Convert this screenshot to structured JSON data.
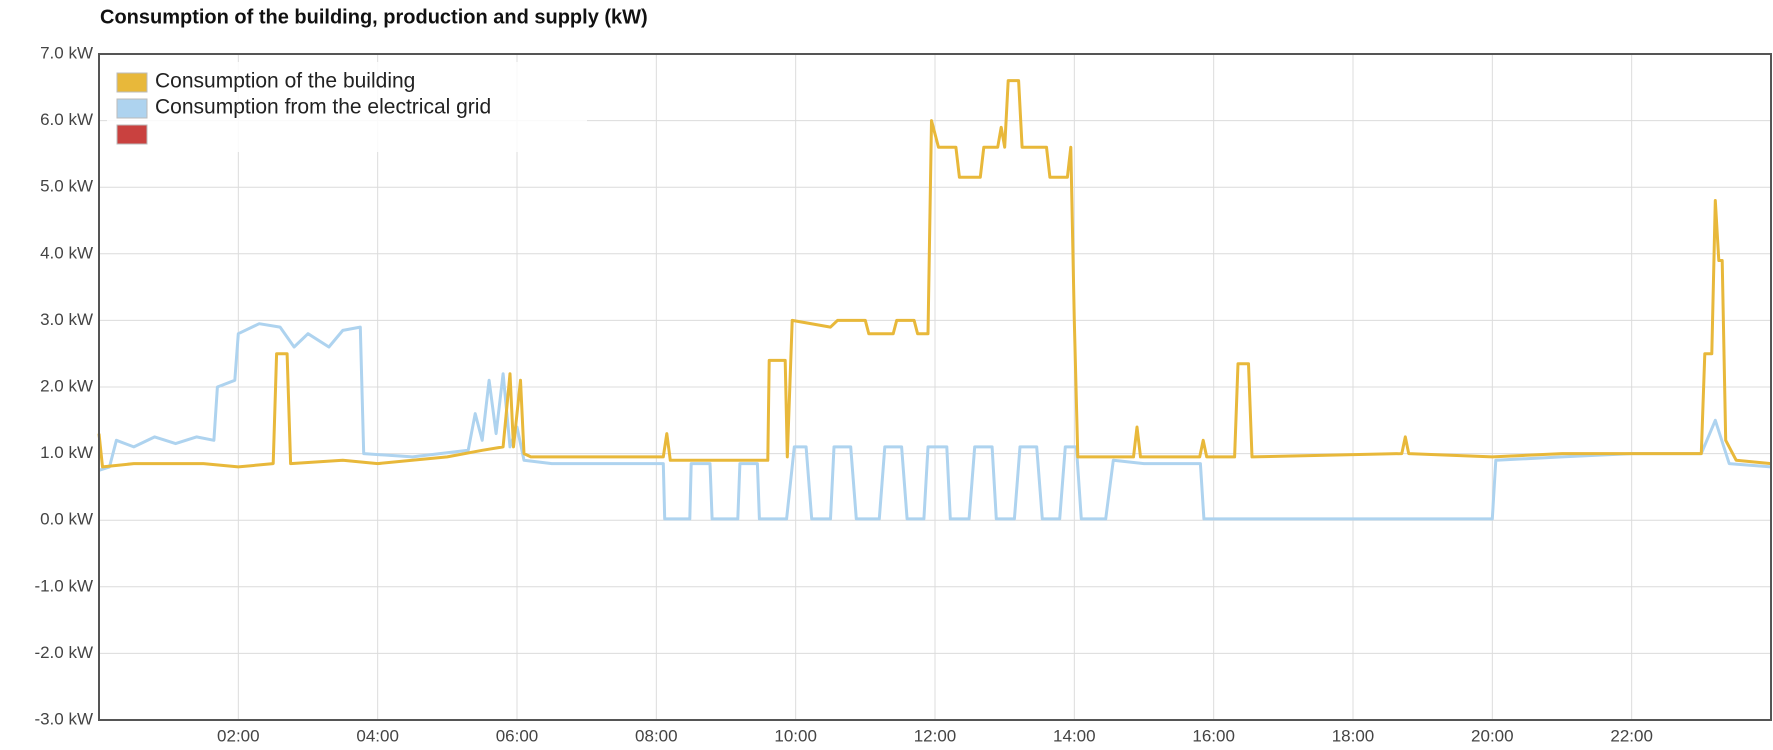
{
  "chart_data": {
    "type": "line",
    "title": "Consumption of the building, production and supply (kW)",
    "xlim": [
      0,
      24
    ],
    "xticks": [
      {
        "value": 2,
        "label": "02:00"
      },
      {
        "value": 4,
        "label": "04:00"
      },
      {
        "value": 6,
        "label": "06:00"
      },
      {
        "value": 8,
        "label": "08:00"
      },
      {
        "value": 10,
        "label": "10:00"
      },
      {
        "value": 12,
        "label": "12:00"
      },
      {
        "value": 14,
        "label": "14:00"
      },
      {
        "value": 16,
        "label": "16:00"
      },
      {
        "value": 18,
        "label": "18:00"
      },
      {
        "value": 20,
        "label": "20:00"
      },
      {
        "value": 22,
        "label": "22:00"
      }
    ],
    "ylim": [
      -3,
      7
    ],
    "yticks": [
      {
        "value": 7,
        "label": "7.0 kW"
      },
      {
        "value": 6,
        "label": "6.0 kW"
      },
      {
        "value": 5,
        "label": "5.0 kW"
      },
      {
        "value": 4,
        "label": "4.0 kW"
      },
      {
        "value": 3,
        "label": "3.0 kW"
      },
      {
        "value": 2,
        "label": "2.0 kW"
      },
      {
        "value": 1,
        "label": "1.0 kW"
      },
      {
        "value": 0,
        "label": "0.0 kW"
      },
      {
        "value": -1,
        "label": "-1.0 kW"
      },
      {
        "value": -2,
        "label": "-2.0 kW"
      },
      {
        "value": -3,
        "label": "-3.0 kW"
      }
    ],
    "grid": true,
    "legend": "top-left",
    "series": [
      {
        "name": "Consumption of the building",
        "color": "#e8b83a",
        "x": [
          0,
          0.05,
          0.5,
          1.0,
          1.5,
          2.0,
          2.5,
          2.55,
          2.7,
          2.75,
          3.5,
          4.0,
          5.0,
          5.5,
          5.8,
          5.9,
          5.95,
          6.05,
          6.1,
          6.2,
          7.0,
          8.1,
          8.15,
          8.2,
          9.6,
          9.62,
          9.85,
          9.88,
          9.95,
          10.5,
          10.6,
          11.0,
          11.05,
          11.4,
          11.45,
          11.7,
          11.75,
          11.9,
          11.95,
          12.05,
          12.3,
          12.35,
          12.65,
          12.7,
          12.9,
          12.95,
          13.0,
          13.05,
          13.2,
          13.25,
          13.6,
          13.65,
          13.9,
          13.95,
          14.0,
          14.05,
          14.85,
          14.9,
          14.95,
          15.8,
          15.85,
          15.9,
          16.3,
          16.35,
          16.5,
          16.55,
          18.7,
          18.75,
          18.8,
          20.0,
          21.0,
          23.0,
          23.05,
          23.15,
          23.2,
          23.25,
          23.3,
          23.35,
          23.5,
          24
        ],
        "values": [
          1.3,
          0.8,
          0.85,
          0.85,
          0.85,
          0.8,
          0.85,
          2.5,
          2.5,
          0.85,
          0.9,
          0.85,
          0.95,
          1.05,
          1.1,
          2.2,
          1.1,
          2.1,
          1.0,
          0.95,
          0.95,
          0.95,
          1.3,
          0.9,
          0.9,
          2.4,
          2.4,
          0.95,
          3.0,
          2.9,
          3.0,
          3.0,
          2.8,
          2.8,
          3.0,
          3.0,
          2.8,
          2.8,
          6.0,
          5.6,
          5.6,
          5.15,
          5.15,
          5.6,
          5.6,
          5.9,
          5.6,
          6.6,
          6.6,
          5.6,
          5.6,
          5.15,
          5.15,
          5.6,
          3.0,
          0.95,
          0.95,
          1.4,
          0.95,
          0.95,
          1.2,
          0.95,
          0.95,
          2.35,
          2.35,
          0.95,
          1.0,
          1.25,
          1.0,
          0.95,
          1.0,
          1.0,
          2.5,
          2.5,
          4.8,
          3.9,
          3.9,
          1.2,
          0.9,
          0.85
        ]
      },
      {
        "name": "Consumption from the electrical grid",
        "color": "#aed3ef",
        "x": [
          0,
          0.15,
          0.25,
          0.5,
          0.8,
          1.1,
          1.4,
          1.65,
          1.7,
          1.95,
          2.0,
          2.3,
          2.6,
          2.8,
          3.0,
          3.3,
          3.5,
          3.75,
          3.8,
          4.5,
          5.3,
          5.4,
          5.5,
          5.6,
          5.7,
          5.8,
          5.9,
          6.0,
          6.1,
          6.5,
          7.5,
          8.1,
          8.12,
          8.48,
          8.5,
          8.77,
          8.8,
          9.17,
          9.2,
          9.45,
          9.48,
          9.87,
          9.98,
          10.15,
          10.23,
          10.5,
          10.55,
          10.79,
          10.87,
          11.2,
          11.28,
          11.52,
          11.6,
          11.84,
          11.9,
          12.17,
          12.22,
          12.49,
          12.57,
          12.82,
          12.88,
          13.14,
          13.22,
          13.46,
          13.54,
          13.79,
          13.87,
          14.03,
          14.1,
          14.45,
          14.56,
          15.0,
          15.81,
          15.86,
          20.0,
          20.05,
          21.0,
          22.0,
          23.0,
          23.2,
          23.4,
          24
        ],
        "values": [
          0.75,
          0.8,
          1.2,
          1.1,
          1.25,
          1.15,
          1.25,
          1.2,
          2.0,
          2.1,
          2.8,
          2.95,
          2.9,
          2.6,
          2.8,
          2.6,
          2.85,
          2.9,
          1.0,
          0.95,
          1.05,
          1.6,
          1.2,
          2.1,
          1.3,
          2.2,
          1.1,
          1.4,
          0.9,
          0.85,
          0.85,
          0.85,
          0.02,
          0.02,
          0.85,
          0.85,
          0.02,
          0.02,
          0.85,
          0.85,
          0.02,
          0.02,
          1.1,
          1.1,
          0.02,
          0.02,
          1.1,
          1.1,
          0.02,
          0.02,
          1.1,
          1.1,
          0.02,
          0.02,
          1.1,
          1.1,
          0.02,
          0.02,
          1.1,
          1.1,
          0.02,
          0.02,
          1.1,
          1.1,
          0.02,
          0.02,
          1.1,
          1.1,
          0.02,
          0.02,
          0.9,
          0.85,
          0.85,
          0.02,
          0.02,
          0.9,
          0.95,
          1.0,
          1.0,
          1.5,
          0.85,
          0.8
        ]
      },
      {
        "color": "#c9413f",
        "x": [],
        "values": []
      }
    ]
  }
}
